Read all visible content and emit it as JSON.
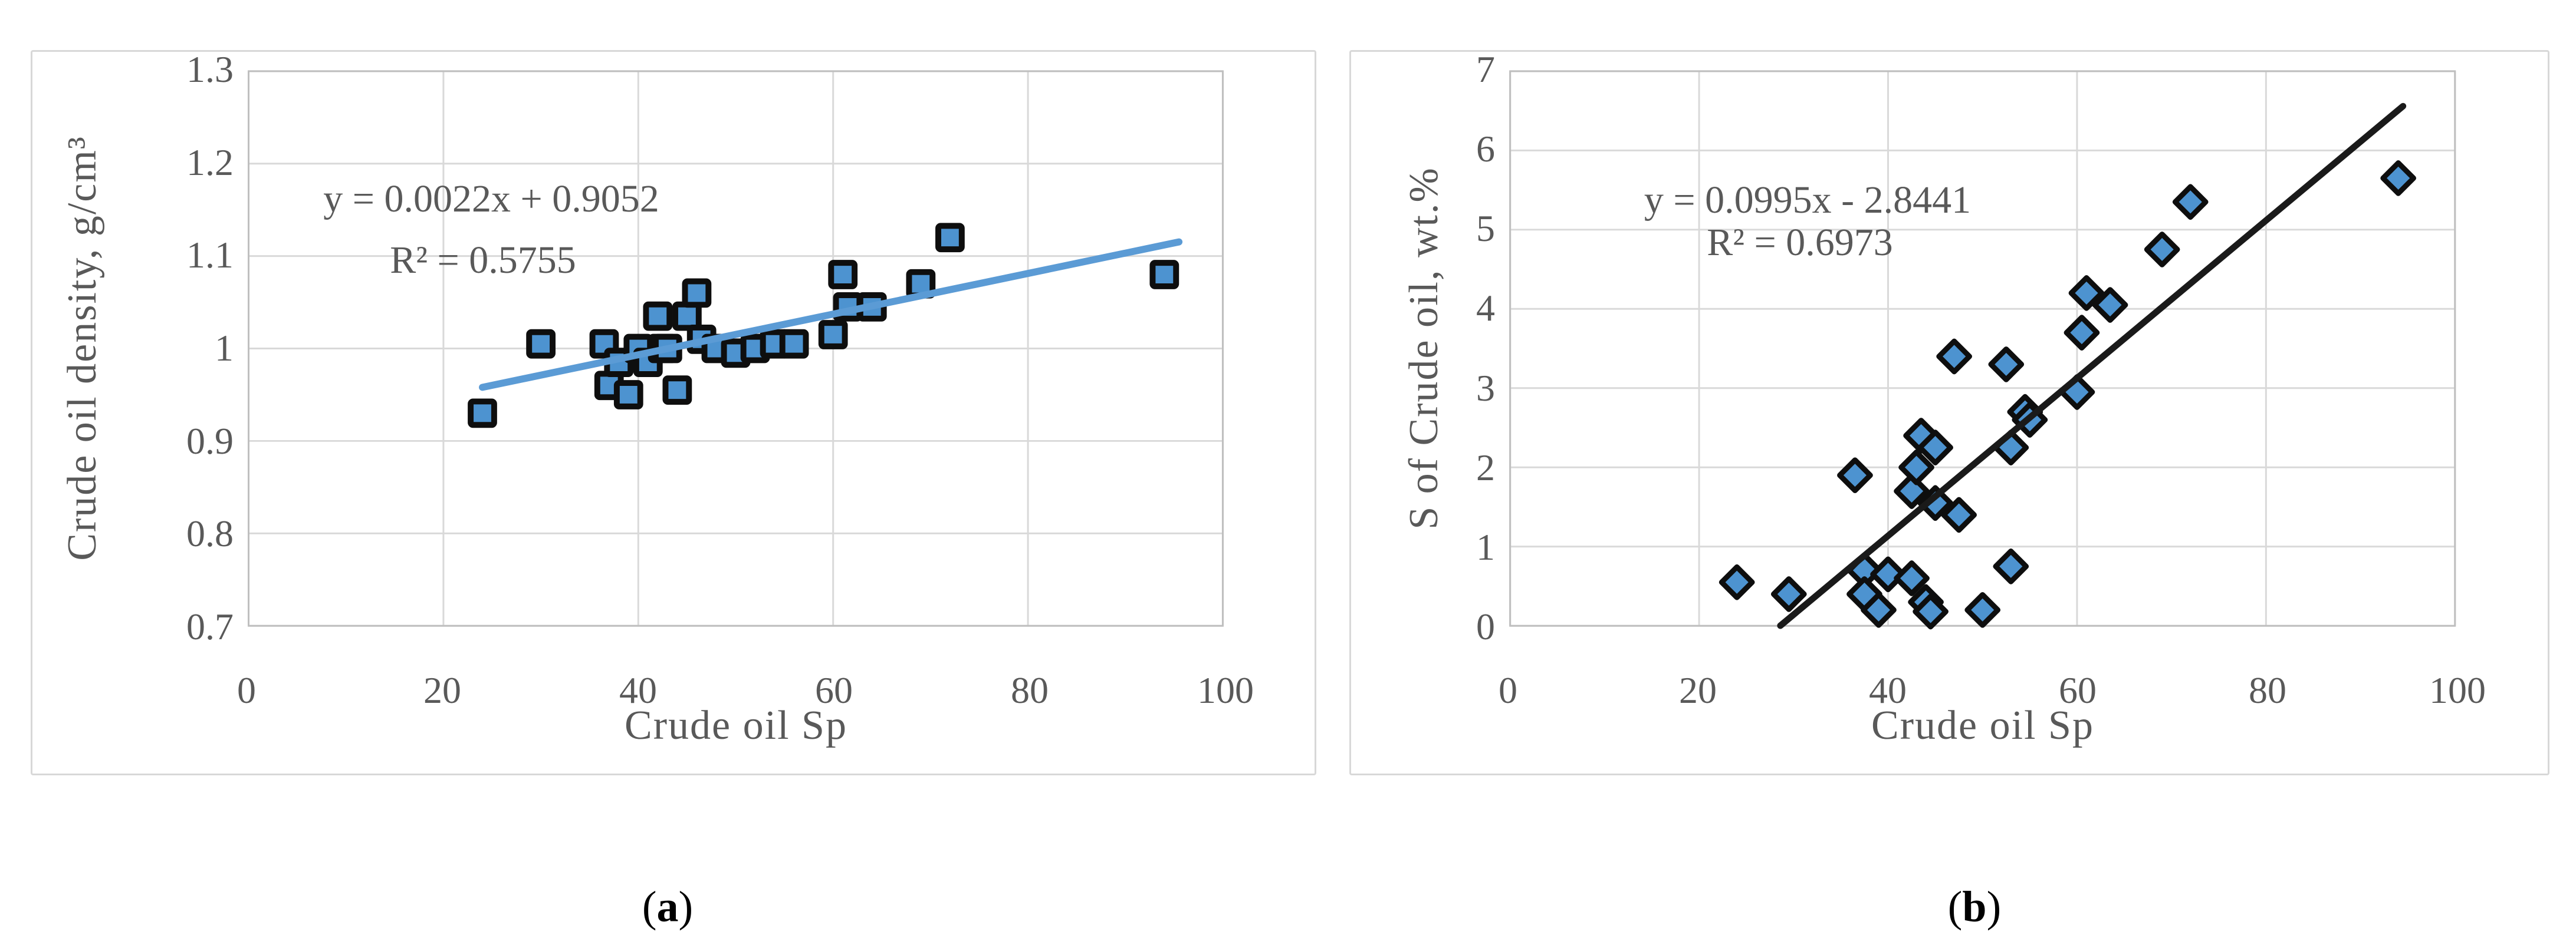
{
  "figure": {
    "captions": [
      {
        "open": "(",
        "letter": "a",
        "close": ")"
      },
      {
        "open": "(",
        "letter": "b",
        "close": ")"
      }
    ]
  },
  "colors": {
    "marker_fill": "#4D93D0",
    "marker_stroke": "#0E0E0E",
    "trend_blue": "#5B9BD5",
    "trend_black": "#1A1A1A",
    "gridline": "#D9D9D9",
    "plot_border": "#BFBFBF",
    "text_gray": "#595959"
  },
  "chart_data": [
    {
      "type": "scatter",
      "panel": "a",
      "marker": "square",
      "xlabel": "Crude oil Sp",
      "ylabel": "Crude oil density, g/cm³",
      "xlim": [
        0,
        100
      ],
      "ylim": [
        0.7,
        1.3
      ],
      "x_ticks": [
        0,
        20,
        40,
        60,
        80,
        100
      ],
      "x_tick_labels": [
        "0",
        "20",
        "40",
        "60",
        "80",
        "100"
      ],
      "y_ticks": [
        0.7,
        0.8,
        0.9,
        1.0,
        1.1,
        1.2,
        1.3
      ],
      "y_tick_labels": [
        "0.7",
        "0.8",
        "0.9",
        "1",
        "1.1",
        "1.2",
        "1.3"
      ],
      "grid": true,
      "legend": "none",
      "equation": "y = 0.0022x + 0.9052",
      "r_squared": "R² = 0.5755",
      "trendline": {
        "slope": 0.0022,
        "intercept": 0.9052,
        "x_start": 24,
        "x_end": 95.5,
        "color": "#5B9BD5",
        "width": 12
      },
      "marker_fill": "#4D93D0",
      "marker_stroke": "#0E0E0E",
      "points": [
        [
          24,
          0.93
        ],
        [
          30,
          1.005
        ],
        [
          36.5,
          1.005
        ],
        [
          37,
          0.96
        ],
        [
          38,
          0.985
        ],
        [
          39,
          0.95
        ],
        [
          40,
          1.0
        ],
        [
          41,
          0.985
        ],
        [
          42,
          1.035
        ],
        [
          42.5,
          1.0
        ],
        [
          43,
          1.0
        ],
        [
          44,
          0.955
        ],
        [
          45,
          1.035
        ],
        [
          46,
          1.06
        ],
        [
          46.5,
          1.01
        ],
        [
          48,
          1.0
        ],
        [
          50,
          0.995
        ],
        [
          52,
          1.0
        ],
        [
          54,
          1.005
        ],
        [
          56,
          1.005
        ],
        [
          60,
          1.015
        ],
        [
          61,
          1.08
        ],
        [
          61.5,
          1.045
        ],
        [
          64,
          1.045
        ],
        [
          69,
          1.07
        ],
        [
          72,
          1.12
        ],
        [
          94,
          1.08
        ]
      ]
    },
    {
      "type": "scatter",
      "panel": "b",
      "marker": "diamond",
      "xlabel": "Crude oil Sp",
      "ylabel": "S of Crude oil, wt.%",
      "xlim": [
        0,
        100
      ],
      "ylim": [
        0,
        7
      ],
      "x_ticks": [
        0,
        20,
        40,
        60,
        80,
        100
      ],
      "x_tick_labels": [
        "0",
        "20",
        "40",
        "60",
        "80",
        "100"
      ],
      "y_ticks": [
        0,
        1,
        2,
        3,
        4,
        5,
        6,
        7
      ],
      "y_tick_labels": [
        "0",
        "1",
        "2",
        "3",
        "4",
        "5",
        "6",
        "7"
      ],
      "grid": true,
      "legend": "none",
      "equation": "y = 0.0995x - 2.8441",
      "r_squared": "R² = 0.6973",
      "trendline": {
        "slope": 0.0995,
        "intercept": -2.8441,
        "x_start": 28.6,
        "x_end": 94.5,
        "color": "#1A1A1A",
        "width": 11
      },
      "marker_fill": "#4D93D0",
      "marker_stroke": "#0E0E0E",
      "points": [
        [
          24,
          0.55
        ],
        [
          29.5,
          0.4
        ],
        [
          36.5,
          1.9
        ],
        [
          37.5,
          0.7
        ],
        [
          37.5,
          0.4
        ],
        [
          39,
          0.2
        ],
        [
          40,
          0.65
        ],
        [
          42.5,
          0.6
        ],
        [
          42.5,
          1.7
        ],
        [
          43,
          2.0
        ],
        [
          43.5,
          2.4
        ],
        [
          44,
          0.3
        ],
        [
          44.5,
          0.18
        ],
        [
          45,
          2.25
        ],
        [
          45,
          1.55
        ],
        [
          47,
          3.4
        ],
        [
          47.5,
          1.4
        ],
        [
          50,
          0.2
        ],
        [
          52.5,
          3.3
        ],
        [
          53,
          0.75
        ],
        [
          53,
          2.25
        ],
        [
          54.5,
          2.7
        ],
        [
          55,
          2.6
        ],
        [
          60,
          2.95
        ],
        [
          60.5,
          3.7
        ],
        [
          61,
          4.2
        ],
        [
          63.5,
          4.05
        ],
        [
          69,
          4.75
        ],
        [
          72,
          5.35
        ],
        [
          94,
          5.65
        ]
      ]
    }
  ]
}
